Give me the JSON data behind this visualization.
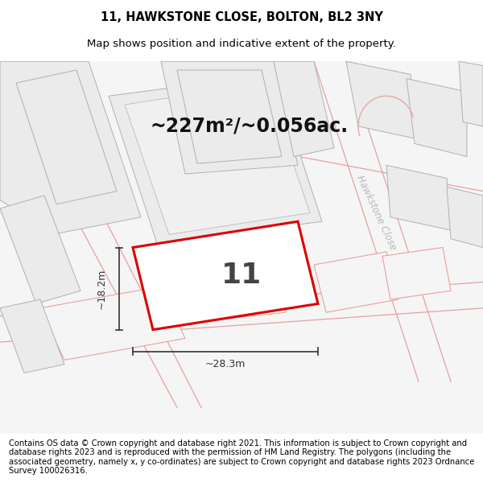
{
  "title_line1": "11, HAWKSTONE CLOSE, BOLTON, BL2 3NY",
  "title_line2": "Map shows position and indicative extent of the property.",
  "area_text": "~227m²/~0.056ac.",
  "number_label": "11",
  "dim_width": "~28.3m",
  "dim_height": "~18.2m",
  "street_label": "Hawkstone Close",
  "footer_text": "Contains OS data © Crown copyright and database right 2021. This information is subject to Crown copyright and database rights 2023 and is reproduced with the permission of HM Land Registry. The polygons (including the associated geometry, namely x, y co-ordinates) are subject to Crown copyright and database rights 2023 Ordnance Survey 100026316.",
  "map_bg": "#f5f5f5",
  "plot_fill": "#ffffff",
  "plot_edge": "#dd0000",
  "parcel_fill": "#ebebeb",
  "parcel_edge_dark": "#b0b0b0",
  "parcel_edge_pink": "#e8a0a0",
  "road_color": "#e8a0a0",
  "street_color": "#b8b8b8",
  "title_fontsize": 10.5,
  "subtitle_fontsize": 9.5,
  "area_fontsize": 17,
  "number_fontsize": 26,
  "footer_fontsize": 7.2,
  "dim_fontsize": 9,
  "dim_color": "#333333",
  "number_color": "#444444"
}
